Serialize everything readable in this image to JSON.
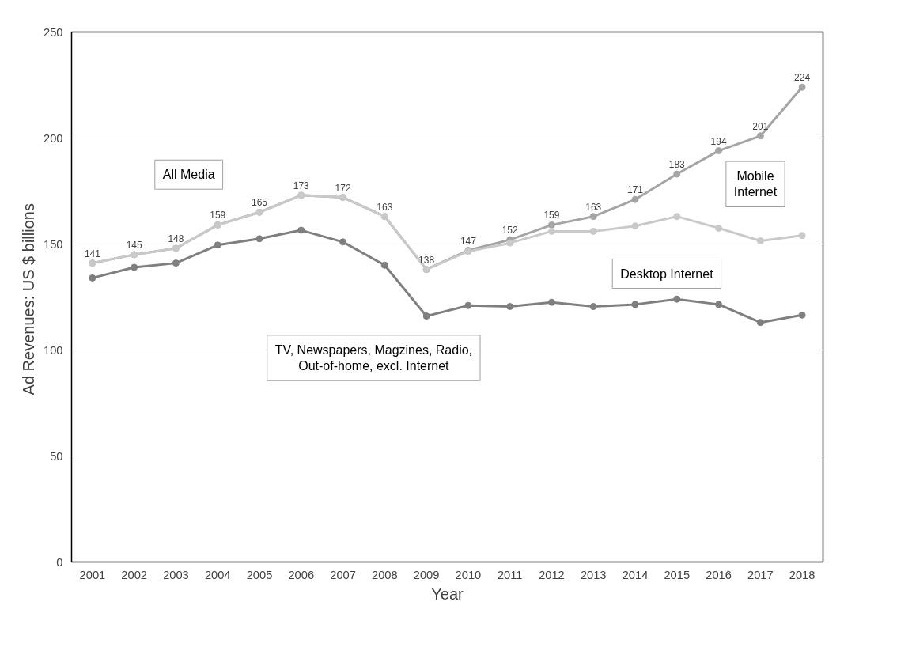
{
  "chart_data": {
    "type": "line",
    "xlabel": "Year",
    "ylabel": "Ad Revenues:  US $ billions",
    "categories": [
      "2001",
      "2002",
      "2003",
      "2004",
      "2005",
      "2006",
      "2007",
      "2008",
      "2009",
      "2010",
      "2011",
      "2012",
      "2013",
      "2014",
      "2015",
      "2016",
      "2017",
      "2018"
    ],
    "ylim": [
      0,
      250
    ],
    "yticks": [
      0,
      50,
      100,
      150,
      200,
      250
    ],
    "grid": "y",
    "marker": "circle",
    "line_style": "solid",
    "series": [
      {
        "color": "#a5a5a5",
        "values": [
          141,
          145,
          148,
          159,
          165,
          173,
          172,
          163,
          138,
          147,
          152,
          159,
          163,
          171,
          183,
          194,
          201,
          224
        ],
        "value_labels": [
          "141",
          "145",
          "148",
          "159",
          "165",
          "173",
          "172",
          "163",
          "138",
          "147",
          "152",
          "159",
          "163",
          "171",
          "183",
          "194",
          "201",
          "224"
        ]
      },
      {
        "color": "#c9c9c9",
        "values": [
          141,
          145,
          148,
          159,
          165,
          173,
          172,
          163,
          138,
          146.5,
          150.5,
          156,
          156,
          158.5,
          163,
          157.5,
          151.5,
          154
        ]
      },
      {
        "color": "#7f7f7f",
        "values": [
          134,
          139,
          141,
          149.5,
          152.5,
          156.5,
          151,
          140,
          116,
          121,
          120.5,
          122.5,
          120.5,
          121.5,
          124,
          121.5,
          113,
          116.5
        ]
      }
    ],
    "annotations": [
      "All Media",
      "Mobile Internet",
      "Desktop Internet",
      "TV, Newspapers, Magzines, Radio, Out-of-home, excl. Internet"
    ]
  }
}
